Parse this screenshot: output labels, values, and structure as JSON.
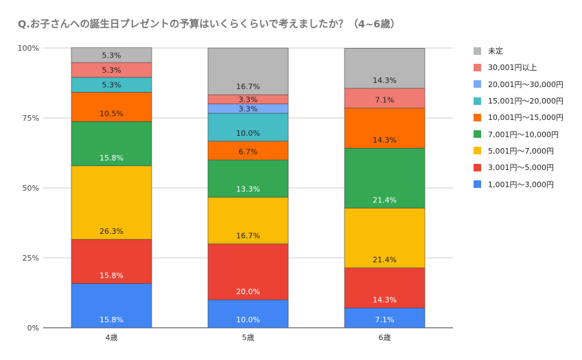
{
  "chart_data": {
    "type": "bar",
    "stacked": "percent",
    "title": "Q.お子さんへの誕生日プレゼントの予算はいくらくらいで考えましたか？（4~6歳）",
    "xlabel": "",
    "ylabel": "",
    "ylim": [
      0,
      100
    ],
    "yticks": [
      "0%",
      "25%",
      "50%",
      "75%",
      "100%"
    ],
    "grid": true,
    "legend_position": "right",
    "categories": [
      "4歳",
      "5歳",
      "6歳"
    ],
    "series": [
      {
        "name": "1,001円〜3,000円",
        "color": "#4285f4",
        "values": [
          15.8,
          10.0,
          7.1
        ],
        "labels": [
          "15.8%",
          "10.0%",
          "7.1%"
        ]
      },
      {
        "name": "3,001円〜5,000円",
        "color": "#ea4335",
        "values": [
          15.8,
          20.0,
          14.3
        ],
        "labels": [
          "15.8%",
          "20.0%",
          "14.3%"
        ]
      },
      {
        "name": "5,001円〜7,000円",
        "color": "#fbbc04",
        "values": [
          26.3,
          16.7,
          21.4
        ],
        "labels": [
          "26.3%",
          "16.7%",
          "21.4%"
        ]
      },
      {
        "name": "7,001円〜10,000円",
        "color": "#34a853",
        "values": [
          15.8,
          13.3,
          21.4
        ],
        "labels": [
          "15.8%",
          "13.3%",
          "21.4%"
        ]
      },
      {
        "name": "10,001円〜15,000円",
        "color": "#ff6d01",
        "values": [
          10.5,
          6.7,
          14.3
        ],
        "labels": [
          "10.5%",
          "6.7%",
          "14.3%"
        ]
      },
      {
        "name": "15,001円〜20,000円",
        "color": "#46bdc6",
        "values": [
          5.3,
          10.0,
          0
        ],
        "labels": [
          "5.3%",
          "10.0%",
          ""
        ]
      },
      {
        "name": "20,001円〜30,000円",
        "color": "#7baaf7",
        "values": [
          0,
          3.3,
          0
        ],
        "labels": [
          "",
          "3.3%",
          ""
        ]
      },
      {
        "name": "30,001円以上",
        "color": "#f07b72",
        "values": [
          5.3,
          3.3,
          7.1
        ],
        "labels": [
          "5.3%",
          "3.3%",
          "7.1%"
        ]
      },
      {
        "name": "未定",
        "color": "#b7b7b7",
        "values": [
          5.3,
          16.7,
          14.3
        ],
        "labels": [
          "5.3%",
          "16.7%",
          "14.3%"
        ]
      }
    ]
  }
}
